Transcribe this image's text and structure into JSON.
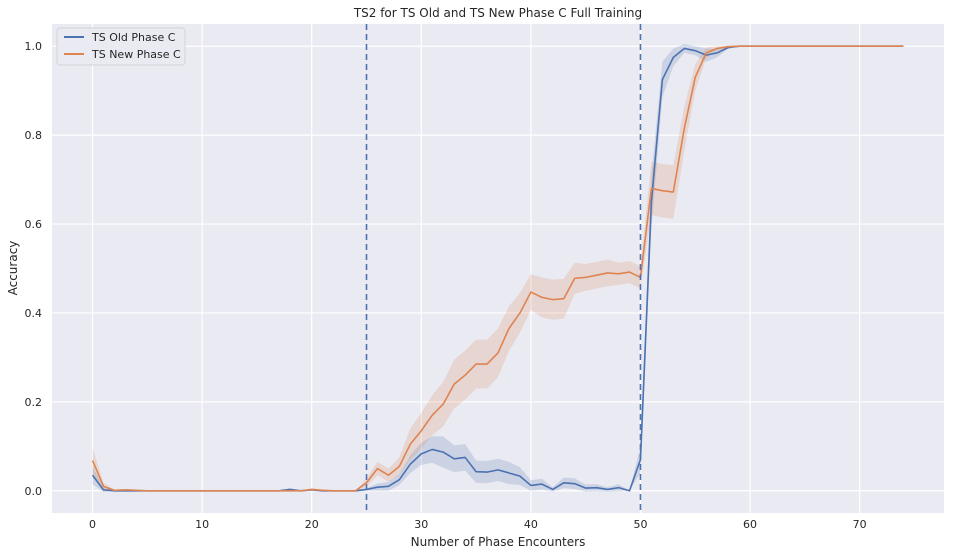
{
  "chart_data": {
    "type": "line",
    "title": "TS2 for TS Old and TS New Phase C Full Training",
    "xlabel": "Number of Phase Encounters",
    "ylabel": "Accuracy",
    "xlim": [
      -3.7,
      77.7
    ],
    "ylim": [
      -0.05,
      1.05
    ],
    "xticks": [
      0,
      10,
      20,
      30,
      40,
      50,
      60,
      70
    ],
    "yticks": [
      0.0,
      0.2,
      0.4,
      0.6,
      0.8,
      1.0
    ],
    "xtick_labels": [
      "0",
      "10",
      "20",
      "30",
      "40",
      "50",
      "60",
      "70"
    ],
    "ytick_labels": [
      "0.0",
      "0.2",
      "0.4",
      "0.6",
      "0.8",
      "1.0"
    ],
    "grid": true,
    "legend_position": "top-left",
    "vlines": [
      25,
      50
    ],
    "background": "#eaeaf2",
    "series": [
      {
        "name": "TS Old Phase C",
        "color": "#4c72b0",
        "x": [
          0,
          1,
          2,
          3,
          4,
          5,
          6,
          7,
          8,
          9,
          10,
          11,
          12,
          13,
          14,
          15,
          16,
          17,
          18,
          19,
          20,
          21,
          22,
          23,
          24,
          25,
          26,
          27,
          28,
          29,
          30,
          31,
          32,
          33,
          34,
          35,
          36,
          37,
          38,
          39,
          40,
          41,
          42,
          43,
          44,
          45,
          46,
          47,
          48,
          49,
          50,
          51,
          52,
          53,
          54,
          55,
          56,
          57,
          58,
          59,
          60,
          61,
          62,
          63,
          64,
          65,
          66,
          67,
          68,
          69,
          70,
          71,
          72,
          73,
          74
        ],
        "y": [
          0.035,
          0.002,
          0,
          0,
          0,
          0,
          0,
          0,
          0,
          0,
          0,
          0,
          0,
          0,
          0,
          0,
          0,
          0,
          0.003,
          0,
          0.002,
          0,
          0,
          0,
          0,
          0.003,
          0.008,
          0.01,
          0.025,
          0.06,
          0.083,
          0.093,
          0.087,
          0.072,
          0.075,
          0.043,
          0.042,
          0.047,
          0.04,
          0.033,
          0.012,
          0.015,
          0.003,
          0.018,
          0.016,
          0.006,
          0.007,
          0.003,
          0.007,
          0,
          0.07,
          0.65,
          0.925,
          0.975,
          0.995,
          0.99,
          0.98,
          0.985,
          0.997,
          1,
          1,
          1,
          1,
          1,
          1,
          1,
          1,
          1,
          1,
          1,
          1,
          1,
          1,
          1,
          1
        ],
        "ci": [
          0.02,
          0.005,
          0,
          0,
          0,
          0,
          0,
          0,
          0,
          0,
          0,
          0,
          0,
          0,
          0,
          0,
          0,
          0,
          0.003,
          0,
          0.002,
          0,
          0,
          0,
          0,
          0.003,
          0.008,
          0.01,
          0.012,
          0.02,
          0.025,
          0.03,
          0.035,
          0.03,
          0.03,
          0.025,
          0.025,
          0.025,
          0.025,
          0.02,
          0.012,
          0.012,
          0.005,
          0.012,
          0.012,
          0.008,
          0.008,
          0.005,
          0.008,
          0,
          0.03,
          0.06,
          0.04,
          0.02,
          0.01,
          0.01,
          0.015,
          0.01,
          0.003,
          0,
          0,
          0,
          0,
          0,
          0,
          0,
          0,
          0,
          0,
          0,
          0,
          0,
          0,
          0,
          0
        ]
      },
      {
        "name": "TS New Phase C",
        "color": "#dd8452",
        "x": [
          0,
          1,
          2,
          3,
          4,
          5,
          6,
          7,
          8,
          9,
          10,
          11,
          12,
          13,
          14,
          15,
          16,
          17,
          18,
          19,
          20,
          21,
          22,
          23,
          24,
          25,
          26,
          27,
          28,
          29,
          30,
          31,
          32,
          33,
          34,
          35,
          36,
          37,
          38,
          39,
          40,
          41,
          42,
          43,
          44,
          45,
          46,
          47,
          48,
          49,
          50,
          51,
          52,
          53,
          54,
          55,
          56,
          57,
          58,
          59,
          60,
          61,
          62,
          63,
          64,
          65,
          66,
          67,
          68,
          69,
          70,
          71,
          72,
          73,
          74
        ],
        "y": [
          0.068,
          0.01,
          0.001,
          0.002,
          0.001,
          0,
          0,
          0,
          0,
          0,
          0,
          0,
          0,
          0,
          0,
          0,
          0,
          0,
          0,
          0,
          0.003,
          0.001,
          0,
          0,
          0,
          0.018,
          0.05,
          0.035,
          0.055,
          0.105,
          0.135,
          0.17,
          0.195,
          0.24,
          0.26,
          0.285,
          0.285,
          0.31,
          0.365,
          0.4,
          0.447,
          0.435,
          0.43,
          0.432,
          0.478,
          0.48,
          0.485,
          0.49,
          0.488,
          0.492,
          0.48,
          0.68,
          0.675,
          0.672,
          0.815,
          0.93,
          0.985,
          0.995,
          0.999,
          1,
          1,
          1,
          1,
          1,
          1,
          1,
          1,
          1,
          1,
          1,
          1,
          1,
          1,
          1,
          1
        ],
        "ci": [
          0.03,
          0.008,
          0.002,
          0.002,
          0.001,
          0,
          0,
          0,
          0,
          0,
          0,
          0,
          0,
          0,
          0,
          0,
          0,
          0,
          0,
          0,
          0.003,
          0.001,
          0,
          0,
          0,
          0.01,
          0.015,
          0.015,
          0.02,
          0.035,
          0.04,
          0.045,
          0.05,
          0.055,
          0.055,
          0.055,
          0.055,
          0.055,
          0.05,
          0.045,
          0.04,
          0.045,
          0.045,
          0.045,
          0.035,
          0.03,
          0.03,
          0.03,
          0.025,
          0.025,
          0.025,
          0.06,
          0.06,
          0.06,
          0.05,
          0.03,
          0.012,
          0.005,
          0.002,
          0,
          0,
          0,
          0,
          0,
          0,
          0,
          0,
          0,
          0,
          0,
          0,
          0,
          0,
          0,
          0
        ]
      }
    ]
  }
}
